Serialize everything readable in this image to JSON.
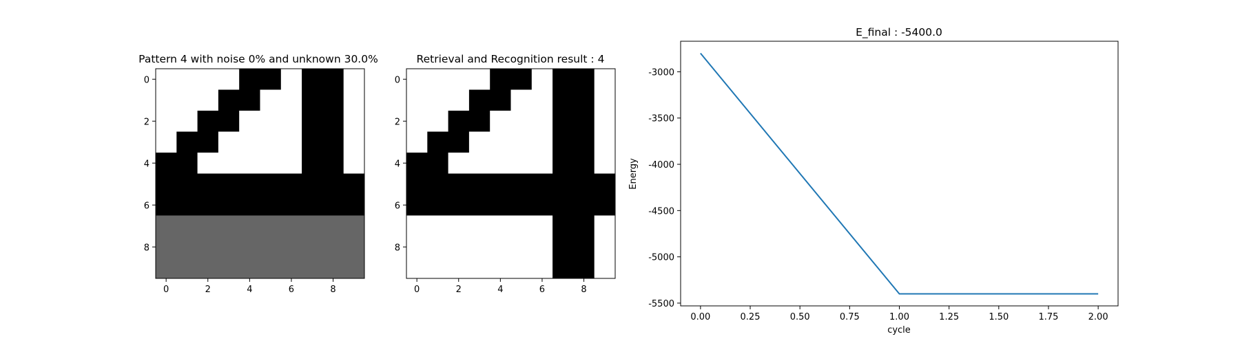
{
  "chart_data": [
    {
      "type": "heatmap",
      "title": "Pattern 4 with noise 0% and unknown 30.0%",
      "colormap": "gray",
      "cells": [
        [
          1,
          1,
          1,
          1,
          0,
          0,
          1,
          0,
          0,
          1
        ],
        [
          1,
          1,
          1,
          0,
          0,
          1,
          1,
          0,
          0,
          1
        ],
        [
          1,
          1,
          0,
          0,
          1,
          1,
          1,
          0,
          0,
          1
        ],
        [
          1,
          0,
          0,
          1,
          1,
          1,
          1,
          0,
          0,
          1
        ],
        [
          0,
          0,
          1,
          1,
          1,
          1,
          1,
          0,
          0,
          1
        ],
        [
          0,
          0,
          0,
          0,
          0,
          0,
          0,
          0,
          0,
          0
        ],
        [
          0,
          0,
          0,
          0,
          0,
          0,
          0,
          0,
          0,
          0
        ],
        [
          0.4,
          0.4,
          0.4,
          0.4,
          0.4,
          0.4,
          0.4,
          0.4,
          0.4,
          0.4
        ],
        [
          0.4,
          0.4,
          0.4,
          0.4,
          0.4,
          0.4,
          0.4,
          0.4,
          0.4,
          0.4
        ],
        [
          0.4,
          0.4,
          0.4,
          0.4,
          0.4,
          0.4,
          0.4,
          0.4,
          0.4,
          0.4
        ]
      ],
      "xticks": [
        "0",
        "2",
        "4",
        "6",
        "8"
      ],
      "yticks": [
        "0",
        "2",
        "4",
        "6",
        "8"
      ]
    },
    {
      "type": "heatmap",
      "title": "Retrieval and Recognition result : 4",
      "colormap": "gray",
      "cells": [
        [
          1,
          1,
          1,
          1,
          0,
          0,
          1,
          0,
          0,
          1
        ],
        [
          1,
          1,
          1,
          0,
          0,
          1,
          1,
          0,
          0,
          1
        ],
        [
          1,
          1,
          0,
          0,
          1,
          1,
          1,
          0,
          0,
          1
        ],
        [
          1,
          0,
          0,
          1,
          1,
          1,
          1,
          0,
          0,
          1
        ],
        [
          0,
          0,
          1,
          1,
          1,
          1,
          1,
          0,
          0,
          1
        ],
        [
          0,
          0,
          0,
          0,
          0,
          0,
          0,
          0,
          0,
          0
        ],
        [
          0,
          0,
          0,
          0,
          0,
          0,
          0,
          0,
          0,
          0
        ],
        [
          1,
          1,
          1,
          1,
          1,
          1,
          1,
          0,
          0,
          1
        ],
        [
          1,
          1,
          1,
          1,
          1,
          1,
          1,
          0,
          0,
          1
        ],
        [
          1,
          1,
          1,
          1,
          1,
          1,
          1,
          0,
          0,
          1
        ]
      ],
      "xticks": [
        "0",
        "2",
        "4",
        "6",
        "8"
      ],
      "yticks": [
        "0",
        "2",
        "4",
        "6",
        "8"
      ]
    },
    {
      "type": "line",
      "title": "E_final : -5400.0",
      "xlabel": "cycle",
      "ylabel": "Energy",
      "x": [
        0,
        1,
        2
      ],
      "series": [
        {
          "values": [
            -2800,
            -5400,
            -5400
          ],
          "color": "#1f77b4"
        }
      ],
      "xlim": [
        -0.1,
        2.1
      ],
      "ylim": [
        -5530,
        -2670
      ],
      "xticks": [
        "0.00",
        "0.25",
        "0.50",
        "0.75",
        "1.00",
        "1.25",
        "1.50",
        "1.75",
        "2.00"
      ],
      "yticks": [
        "-3000",
        "-3500",
        "-4000",
        "-4500",
        "-5000",
        "-5500"
      ],
      "grid": false
    }
  ]
}
